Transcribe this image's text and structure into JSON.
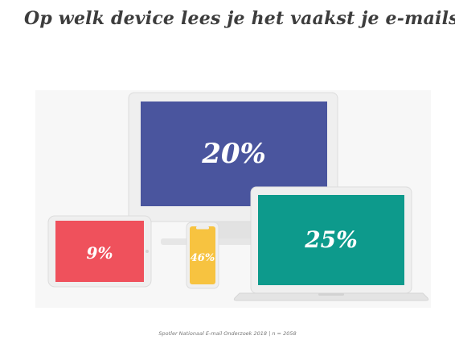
{
  "title": "Op welk device lees je het vaakst je e-mails?",
  "source": "Spotler Nationaal E-mail Onderzoek 2018 | n = 2058",
  "colors": {
    "desktop": "#4a559e",
    "laptop": "#0d9a8c",
    "tablet": "#ef515c",
    "smartphone": "#f7c340",
    "device_frame": "#eeeeee",
    "title": "#3d3d3d"
  },
  "chart_data": {
    "type": "pie",
    "title": "Op welk device lees je het vaakst je e-mails?",
    "unit": "%",
    "categories": [
      "desktop",
      "laptop",
      "tablet",
      "smartphone"
    ],
    "values": [
      20,
      25,
      9,
      46
    ],
    "labels": [
      "20%",
      "25%",
      "9%",
      "46%"
    ]
  }
}
